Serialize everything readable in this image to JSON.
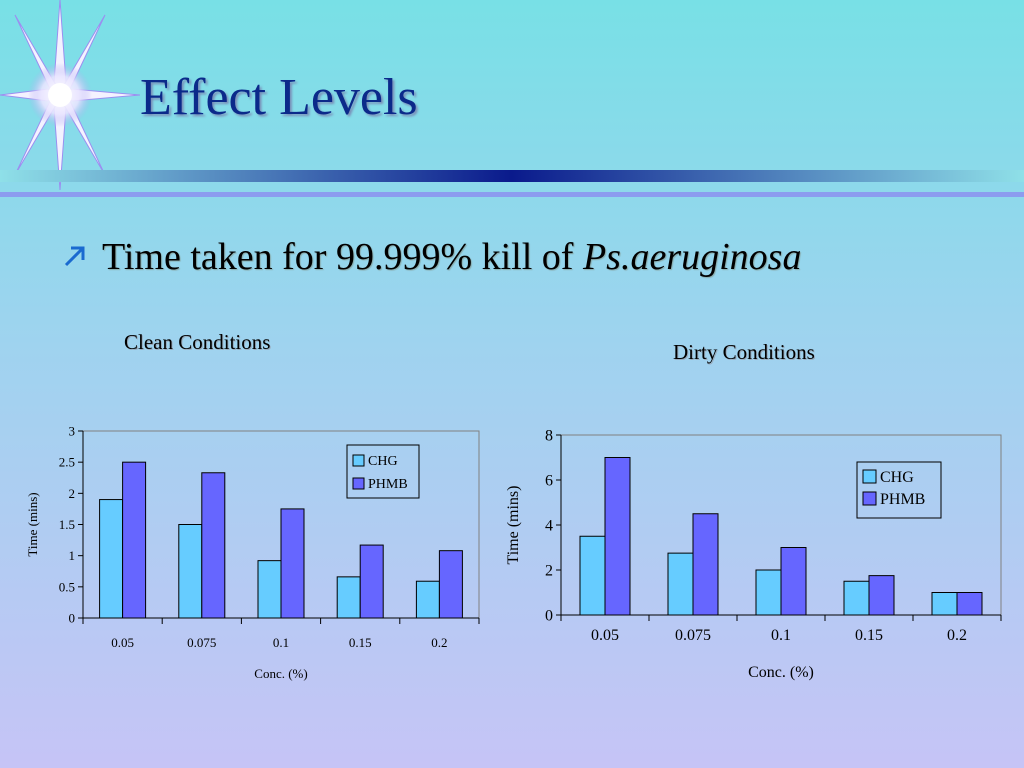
{
  "slide": {
    "title": "Effect Levels",
    "bullet_text": "Time taken for 99.999% kill of ",
    "bullet_italic": "Ps.aeruginosa"
  },
  "colors": {
    "chg": "#66ccff",
    "phmb": "#6666ff",
    "title": "#0b2a8a"
  },
  "chart_data": [
    {
      "type": "bar",
      "title": "Clean Conditions",
      "categories": [
        "0.05",
        "0.075",
        "0.1",
        "0.15",
        "0.2"
      ],
      "series": [
        {
          "name": "CHG",
          "values": [
            1.9,
            1.5,
            0.92,
            0.66,
            0.59
          ]
        },
        {
          "name": "PHMB",
          "values": [
            2.5,
            2.33,
            1.75,
            1.17,
            1.08
          ]
        }
      ],
      "xlabel": "Conc. (%)",
      "ylabel": "Time (mins)",
      "ylim": [
        0,
        3
      ],
      "yticks": [
        "0",
        "0.5",
        "1",
        "1.5",
        "2",
        "2.5",
        "3"
      ],
      "legend_position": "top-right",
      "grid": false
    },
    {
      "type": "bar",
      "title": "Dirty Conditions",
      "categories": [
        "0.05",
        "0.075",
        "0.1",
        "0.15",
        "0.2"
      ],
      "series": [
        {
          "name": "CHG",
          "values": [
            3.5,
            2.75,
            2.0,
            1.5,
            1.0
          ]
        },
        {
          "name": "PHMB",
          "values": [
            7.0,
            4.5,
            3.0,
            1.75,
            1.0
          ]
        }
      ],
      "xlabel": "Conc. (%)",
      "ylabel": "Time (mins)",
      "ylim": [
        0,
        8
      ],
      "yticks": [
        "0",
        "2",
        "4",
        "6",
        "8"
      ],
      "legend_position": "top-right",
      "grid": false
    }
  ]
}
